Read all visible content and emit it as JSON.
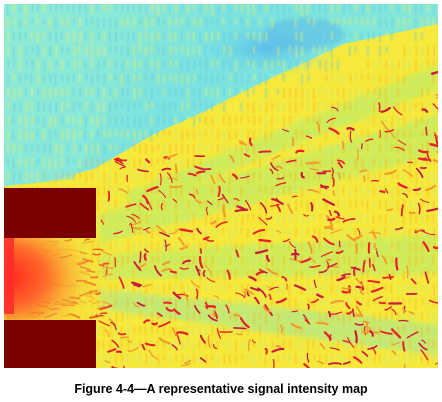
{
  "figure": {
    "caption": "Figure 4-4—A representative signal intensity map"
  },
  "colors": {
    "base_yellow": "#f7e93a",
    "cyan_region": "#7fe6e3",
    "blue_patch": "#5fbfe8",
    "green_mid": "#b6ee6a",
    "red_stroke": "#e8202a",
    "orange_stroke": "#f39a2a",
    "wall_dark_red": "#7a0000",
    "source_red": "#ff2a2a"
  }
}
